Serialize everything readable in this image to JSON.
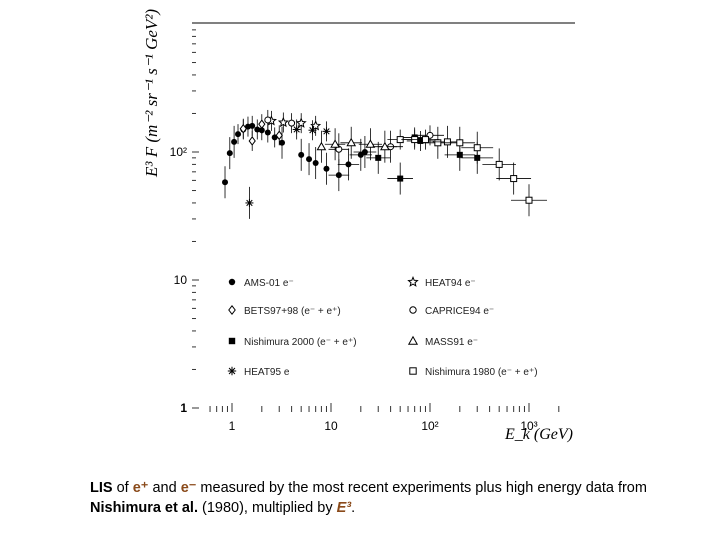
{
  "chart_data": {
    "type": "scatter",
    "ylabel": "E³ F (m⁻² sr⁻¹ s⁻¹ GeV²)",
    "xlabel": "E_k (GeV)",
    "x_scale": "log",
    "y_scale": "log",
    "xlim": [
      0.5,
      1500
    ],
    "ylim": [
      1,
      1000
    ],
    "x_ticks": [
      {
        "value": 1,
        "label": "1"
      },
      {
        "value": 10,
        "label": "10"
      },
      {
        "value": 100,
        "label": "10²"
      },
      {
        "value": 1000,
        "label": "10³"
      }
    ],
    "y_ticks": [
      {
        "value": 1,
        "label": "1"
      },
      {
        "value": 10,
        "label": "10"
      },
      {
        "value": 100,
        "label": "10²"
      }
    ],
    "legend_position": "lower-inside",
    "series": [
      {
        "name": "AMS-01 e⁻",
        "marker": "filled-circle",
        "points": [
          {
            "x": 0.85,
            "y": 58
          },
          {
            "x": 0.95,
            "y": 98
          },
          {
            "x": 1.05,
            "y": 120
          },
          {
            "x": 1.15,
            "y": 138
          },
          {
            "x": 1.3,
            "y": 150
          },
          {
            "x": 1.45,
            "y": 158
          },
          {
            "x": 1.6,
            "y": 160
          },
          {
            "x": 1.8,
            "y": 150
          },
          {
            "x": 2.0,
            "y": 148
          },
          {
            "x": 2.3,
            "y": 142
          },
          {
            "x": 2.7,
            "y": 130
          },
          {
            "x": 3.2,
            "y": 118
          },
          {
            "x": 5.0,
            "y": 95
          },
          {
            "x": 6.0,
            "y": 88
          },
          {
            "x": 7.0,
            "y": 82
          },
          {
            "x": 9.0,
            "y": 74
          },
          {
            "x": 12,
            "y": 66
          },
          {
            "x": 15,
            "y": 80
          },
          {
            "x": 20,
            "y": 95
          },
          {
            "x": 22,
            "y": 100
          }
        ]
      },
      {
        "name": "BETS97+98 (e⁻ + e⁺)",
        "marker": "open-diamond",
        "points": [
          {
            "x": 1.3,
            "y": 152
          },
          {
            "x": 1.6,
            "y": 122
          },
          {
            "x": 2.0,
            "y": 165
          },
          {
            "x": 3.0,
            "y": 135
          }
        ]
      },
      {
        "name": "Nishimura 2000 (e⁻ + e⁺)",
        "marker": "filled-square",
        "points": [
          {
            "x": 30,
            "y": 90
          },
          {
            "x": 50,
            "y": 62
          },
          {
            "x": 70,
            "y": 130
          },
          {
            "x": 80,
            "y": 122
          },
          {
            "x": 200,
            "y": 95
          },
          {
            "x": 300,
            "y": 90
          }
        ]
      },
      {
        "name": "HEAT95 e",
        "marker": "asterisk",
        "points": [
          {
            "x": 1.5,
            "y": 40
          },
          {
            "x": 4.5,
            "y": 150
          },
          {
            "x": 6.5,
            "y": 148
          },
          {
            "x": 9.0,
            "y": 145
          }
        ]
      },
      {
        "name": "HEAT94 e⁻",
        "marker": "open-star",
        "points": [
          {
            "x": 2.5,
            "y": 175
          },
          {
            "x": 3.3,
            "y": 170
          },
          {
            "x": 5.0,
            "y": 168
          },
          {
            "x": 7.0,
            "y": 160
          }
        ]
      },
      {
        "name": "CAPRICE94 e⁻",
        "marker": "open-circle",
        "points": [
          {
            "x": 2.3,
            "y": 178
          },
          {
            "x": 4.0,
            "y": 168
          },
          {
            "x": 12,
            "y": 105
          },
          {
            "x": 40,
            "y": 110
          },
          {
            "x": 100,
            "y": 135
          }
        ]
      },
      {
        "name": "MASS91 e⁻",
        "marker": "open-triangle",
        "points": [
          {
            "x": 8,
            "y": 110
          },
          {
            "x": 11,
            "y": 115
          },
          {
            "x": 16,
            "y": 118
          },
          {
            "x": 25,
            "y": 115
          },
          {
            "x": 35,
            "y": 110
          }
        ]
      },
      {
        "name": "Nishimura 1980 (e⁻ + e⁺)",
        "marker": "open-square",
        "points": [
          {
            "x": 50,
            "y": 125
          },
          {
            "x": 70,
            "y": 125
          },
          {
            "x": 90,
            "y": 125
          },
          {
            "x": 120,
            "y": 118
          },
          {
            "x": 150,
            "y": 120
          },
          {
            "x": 200,
            "y": 118
          },
          {
            "x": 300,
            "y": 108
          },
          {
            "x": 500,
            "y": 80
          },
          {
            "x": 700,
            "y": 62
          },
          {
            "x": 1000,
            "y": 42
          }
        ]
      }
    ]
  },
  "caption": {
    "part1": "LIS",
    "part2": " of ",
    "part3": "e⁺",
    "part4": " and ",
    "part5": "e⁻",
    "part6": " measured by the most recent experiments plus high energy data from ",
    "part7": "Nishimura et al.",
    "part8": " (1980), multiplied by ",
    "part9": "E³",
    "part10": "."
  }
}
